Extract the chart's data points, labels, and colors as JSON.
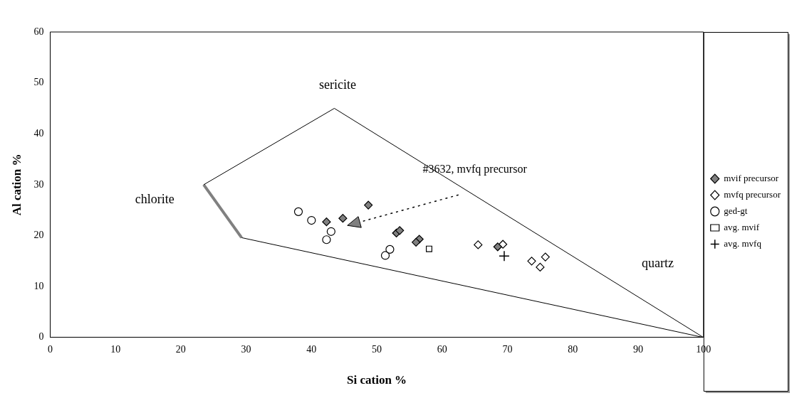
{
  "chart_data": {
    "type": "scatter",
    "xlabel": "Si cation %",
    "ylabel": "Al cation %",
    "xlim": [
      0,
      100
    ],
    "xticks": [
      0,
      10,
      20,
      30,
      40,
      50,
      60,
      70,
      80,
      90,
      100
    ],
    "ylim": [
      0,
      60
    ],
    "yticks": [
      0,
      10,
      20,
      30,
      40,
      50,
      60
    ],
    "grid": false,
    "legend": "right",
    "series": [
      {
        "name": "mvif precursor",
        "color": "#808080",
        "marker": "diamond",
        "x": [
          42.3,
          44.8,
          48.7,
          53,
          53.5,
          56.5,
          56,
          68.5
        ],
        "values": [
          22.7,
          23.4,
          26,
          20.5,
          21,
          19.3,
          18.7,
          17.8
        ]
      },
      {
        "name": "mvfq precursor",
        "color": "#ffffff",
        "marker": "diamond",
        "x": [
          65.5,
          69.3,
          73.7,
          75,
          75.8
        ],
        "values": [
          18.2,
          18.3,
          15,
          13.8,
          15.8
        ]
      },
      {
        "name": "ged-gt",
        "color": "#ffffff",
        "marker": "circle",
        "x": [
          38,
          40,
          43,
          42.3,
          51.3,
          52
        ],
        "values": [
          24.7,
          23,
          20.8,
          19.2,
          16.1,
          17.3
        ]
      },
      {
        "name": "avg. mvif",
        "color": "#ffffff",
        "marker": "square",
        "x": [
          58
        ],
        "values": [
          17.4
        ]
      },
      {
        "name": "avg. mvfq",
        "color": "#000000",
        "marker": "cross",
        "x": [
          69.5
        ],
        "values": [
          16
        ]
      },
      {
        "type": "line",
        "color": "#000000",
        "marker": "none",
        "x": [
          23.5,
          43.5,
          100,
          29.3
        ],
        "values": [
          30,
          45,
          0,
          19.6
        ]
      },
      {
        "type": "line",
        "color": "#808080",
        "marker": "none",
        "x": [
          23.5,
          29.3
        ],
        "values": [
          30,
          19.6
        ]
      }
    ],
    "annotations": [
      "sericite",
      "chlorite",
      "quartz",
      "#3632, mvfq precursor"
    ]
  }
}
